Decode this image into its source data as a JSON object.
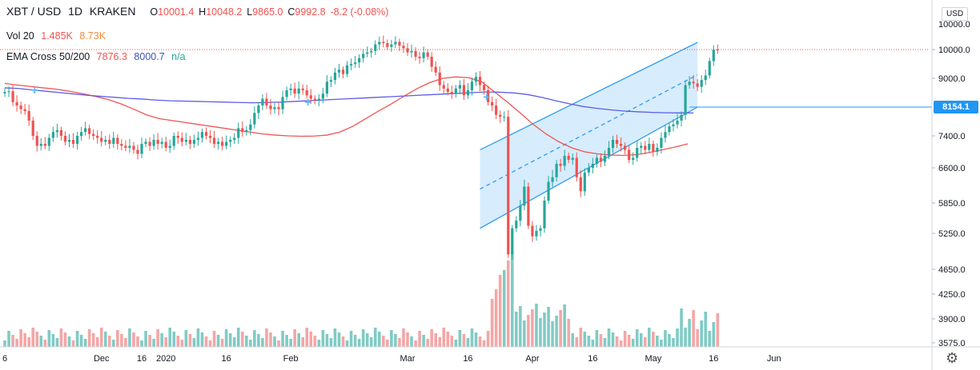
{
  "header": {
    "symbol": "XBT / USD",
    "interval": "1D",
    "exchange": "KRAKEN",
    "ohlc": {
      "o_label": "O",
      "o": "10001.4",
      "h_label": "H",
      "h": "10048.2",
      "l_label": "L",
      "l": "9865.0",
      "c_label": "C",
      "c": "9992.8",
      "change": "-8.2 (-0.08%)"
    }
  },
  "volume_legend": {
    "label": "Vol 20",
    "v1": "1.485K",
    "v2": "8.73K"
  },
  "ema_legend": {
    "label": "EMA Cross 50/200",
    "v1": "7876.3",
    "v2": "8000.7",
    "v3": "n/a"
  },
  "currency_label": "USD",
  "price_tag": "8154.1",
  "colors": {
    "up": "#26a69a",
    "down": "#ef5350",
    "ema50": "#f05454",
    "ema200": "#5b5ce6",
    "channel": "#2196f3",
    "up_vol": "#80cbc4",
    "down_vol": "#f4a6a6"
  },
  "settings_icon": "gear-icon",
  "chart_data": {
    "type": "candlestick",
    "y_axis_ticks": [
      10000.0,
      9000.0,
      8154.1,
      7400.0,
      6600.0,
      5850.0,
      5250.0,
      4650.0,
      4250.0,
      3900.0,
      3575.0
    ],
    "y_axis_top_label": "10000.0",
    "ylim": [
      3575,
      11000
    ],
    "x_tick_labels": [
      "6",
      "Dec",
      "16",
      "2020",
      "16",
      "Feb",
      "Mar",
      "16",
      "Apr",
      "16",
      "May",
      "16",
      "Jun"
    ],
    "x_ticks_day_index": [
      0,
      24,
      34,
      40,
      55,
      71,
      100,
      115,
      131,
      146,
      161,
      176,
      191
    ],
    "channel": {
      "start_day": 118,
      "end_day": 172,
      "lower_start": 5350,
      "lower_end": 8154.1,
      "width": 1700
    },
    "bars_close": [
      8600,
      8620,
      8300,
      8200,
      8100,
      8050,
      7800,
      7400,
      7150,
      7200,
      7150,
      7350,
      7500,
      7550,
      7400,
      7250,
      7300,
      7200,
      7400,
      7500,
      7600,
      7450,
      7400,
      7350,
      7250,
      7300,
      7200,
      7350,
      7200,
      7150,
      7100,
      7150,
      7050,
      6950,
      7200,
      7250,
      7150,
      7300,
      7200,
      7250,
      7100,
      7150,
      7400,
      7350,
      7250,
      7300,
      7200,
      7300,
      7350,
      7500,
      7400,
      7350,
      7200,
      7250,
      7150,
      7250,
      7300,
      7350,
      7600,
      7500,
      7550,
      7700,
      8000,
      8200,
      8400,
      8200,
      8100,
      8150,
      8100,
      8450,
      8650,
      8700,
      8550,
      8700,
      8650,
      8500,
      8400,
      8350,
      8400,
      8550,
      8900,
      8950,
      9200,
      9300,
      9150,
      9450,
      9500,
      9550,
      9700,
      9850,
      9900,
      9950,
      10200,
      10300,
      10250,
      10100,
      10200,
      10300,
      10150,
      10050,
      9900,
      9950,
      9750,
      9700,
      9900,
      9750,
      9400,
      9200,
      8800,
      8700,
      8600,
      8550,
      8700,
      8800,
      8500,
      8650,
      8900,
      9050,
      8800,
      8650,
      8300,
      8200,
      7950,
      7900,
      7900,
      4900,
      5350,
      5500,
      5800,
      6200,
      5400,
      5200,
      5300,
      5350,
      5900,
      6300,
      6400,
      6700,
      6650,
      6900,
      6800,
      6850,
      6400,
      6100,
      6500,
      6600,
      6700,
      6850,
      6750,
      6900,
      7100,
      7300,
      7200,
      7150,
      7050,
      6800,
      6850,
      7100,
      7150,
      7050,
      7200,
      7000,
      7100,
      7350,
      7500,
      7650,
      7700,
      7800,
      7950,
      8800,
      8900,
      8850,
      8750,
      8950,
      9100,
      9600,
      10000,
      9993
    ],
    "ema50": [
      8850,
      8800,
      8760,
      8720,
      8680,
      8620,
      8550,
      8470,
      8380,
      8250,
      8100,
      7950,
      7850,
      7800,
      7750,
      7700,
      7650,
      7600,
      7550,
      7500,
      7450,
      7420,
      7400,
      7390,
      7395,
      7420,
      7500,
      7650,
      7850,
      8050,
      8250,
      8480,
      8700,
      8880,
      9000,
      9050,
      9020,
      8900,
      8600,
      8300,
      8000,
      7700,
      7450,
      7250,
      7100,
      7000,
      6950,
      6920,
      6910,
      6930,
      6980,
      7050,
      7120,
      7200,
      7330,
      7550,
      7876
    ],
    "ema50_days": [
      0,
      5,
      10,
      15,
      20,
      25,
      30,
      35,
      40,
      45,
      50,
      55,
      60,
      65,
      70,
      75,
      80,
      85,
      90,
      95,
      100,
      105,
      110,
      115,
      120,
      125,
      130,
      135,
      140,
      145,
      150,
      155,
      160,
      165,
      170,
      175,
      180,
      185,
      190,
      195,
      200,
      205,
      210,
      215,
      220,
      225,
      230,
      235,
      240,
      245,
      250,
      255,
      260,
      265,
      270,
      275,
      280
    ],
    "ema200": [
      8720,
      8700,
      8660,
      8620,
      8580,
      8540,
      8500,
      8470,
      8440,
      8410,
      8390,
      8360,
      8340,
      8330,
      8320,
      8310,
      8300,
      8290,
      8280,
      8290,
      8300,
      8320,
      8340,
      8360,
      8380,
      8400,
      8420,
      8440,
      8460,
      8480,
      8500,
      8520,
      8540,
      8560,
      8580,
      8600,
      8590,
      8570,
      8520,
      8440,
      8340,
      8250,
      8170,
      8120,
      8080,
      8050,
      8030,
      8015,
      8005,
      8001,
      8000
    ]
  }
}
